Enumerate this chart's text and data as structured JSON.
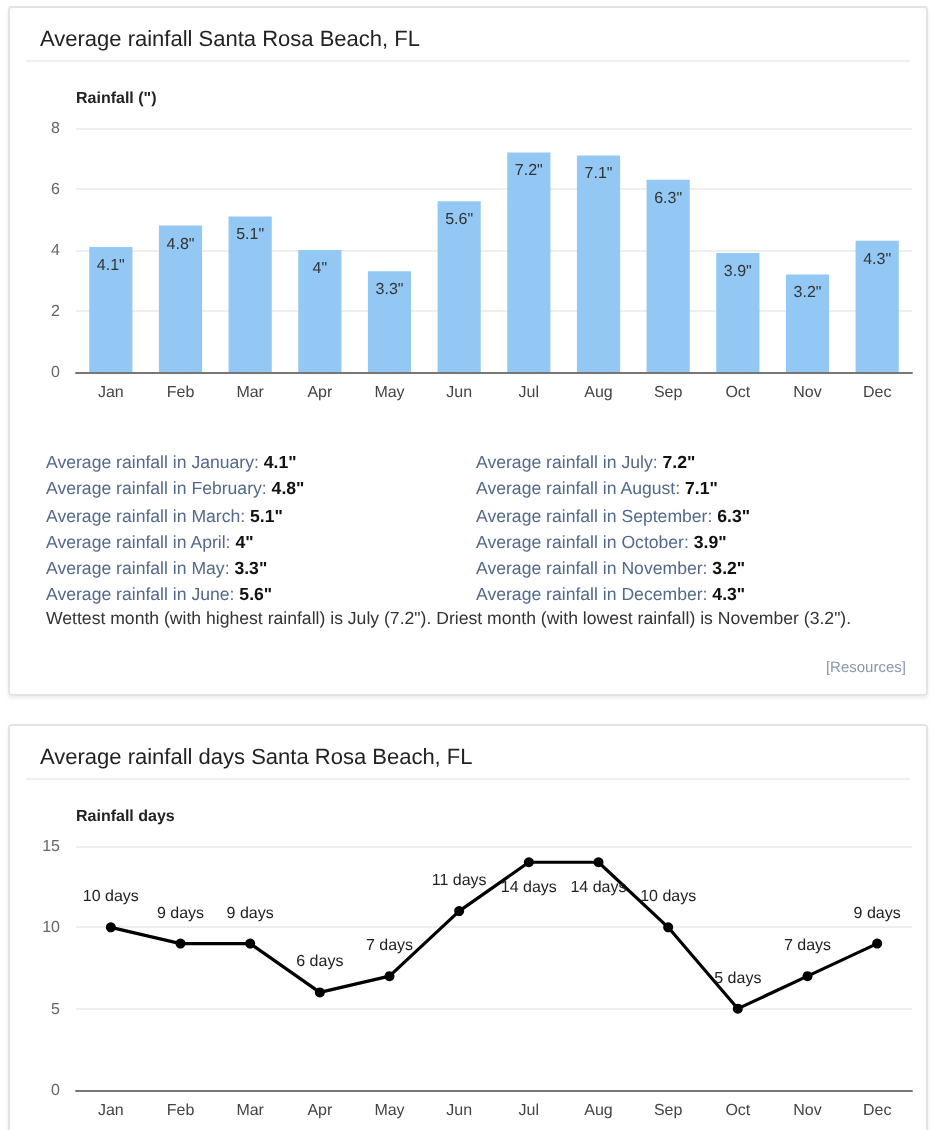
{
  "chart_data": [
    {
      "type": "bar",
      "title": "Average rainfall Santa Rosa Beach, FL",
      "ylabel": "Rainfall (\")",
      "categories": [
        "Jan",
        "Feb",
        "Mar",
        "Apr",
        "May",
        "Jun",
        "Jul",
        "Aug",
        "Sep",
        "Oct",
        "Nov",
        "Dec"
      ],
      "values": [
        4.1,
        4.8,
        5.1,
        4,
        3.3,
        5.6,
        7.2,
        7.1,
        6.3,
        3.9,
        3.2,
        4.3
      ],
      "value_labels": [
        "4.1\"",
        "4.8\"",
        "5.1\"",
        "4\"",
        "3.3\"",
        "5.6\"",
        "7.2\"",
        "7.1\"",
        "6.3\"",
        "3.9\"",
        "3.2\"",
        "4.3\""
      ],
      "color": "#93c8f4",
      "ylim": [
        0,
        8
      ],
      "yticks": [
        0,
        2,
        4,
        6,
        8
      ],
      "grid": "y",
      "annotations": [
        "Average rainfall in January: 4.1\"",
        "Average rainfall in February: 4.8\"",
        "Average rainfall in March: 5.1\"",
        "Average rainfall in April: 4\"",
        "Average rainfall in May: 3.3\"",
        "Average rainfall in June: 5.6\"",
        "Average rainfall in July: 7.2\"",
        "Average rainfall in August: 7.1\"",
        "Average rainfall in September: 6.3\"",
        "Average rainfall in October: 3.9\"",
        "Average rainfall in November: 3.2\"",
        "Average rainfall in December: 4.3\"",
        "Wettest month (with highest rainfall) is July (7.2\"). Driest month (with lowest rainfall) is November (3.2\").",
        "[Resources]"
      ]
    },
    {
      "type": "line",
      "title": "Average rainfall days Santa Rosa Beach, FL",
      "ylabel": "Rainfall days",
      "categories": [
        "Jan",
        "Feb",
        "Mar",
        "Apr",
        "May",
        "Jun",
        "Jul",
        "Aug",
        "Sep",
        "Oct",
        "Nov",
        "Dec"
      ],
      "values": [
        10,
        9,
        9,
        6,
        7,
        11,
        14,
        14,
        10,
        5,
        7,
        9
      ],
      "value_labels": [
        "10 days",
        "9 days",
        "9 days",
        "6 days",
        "7 days",
        "11 days",
        "14 days",
        "14 days",
        "10 days",
        "5 days",
        "7 days",
        "9 days"
      ],
      "color": "#000000",
      "ylim": [
        0,
        15
      ],
      "yticks": [
        0,
        5,
        10,
        15
      ],
      "grid": "y",
      "marker": "circle"
    }
  ]
}
